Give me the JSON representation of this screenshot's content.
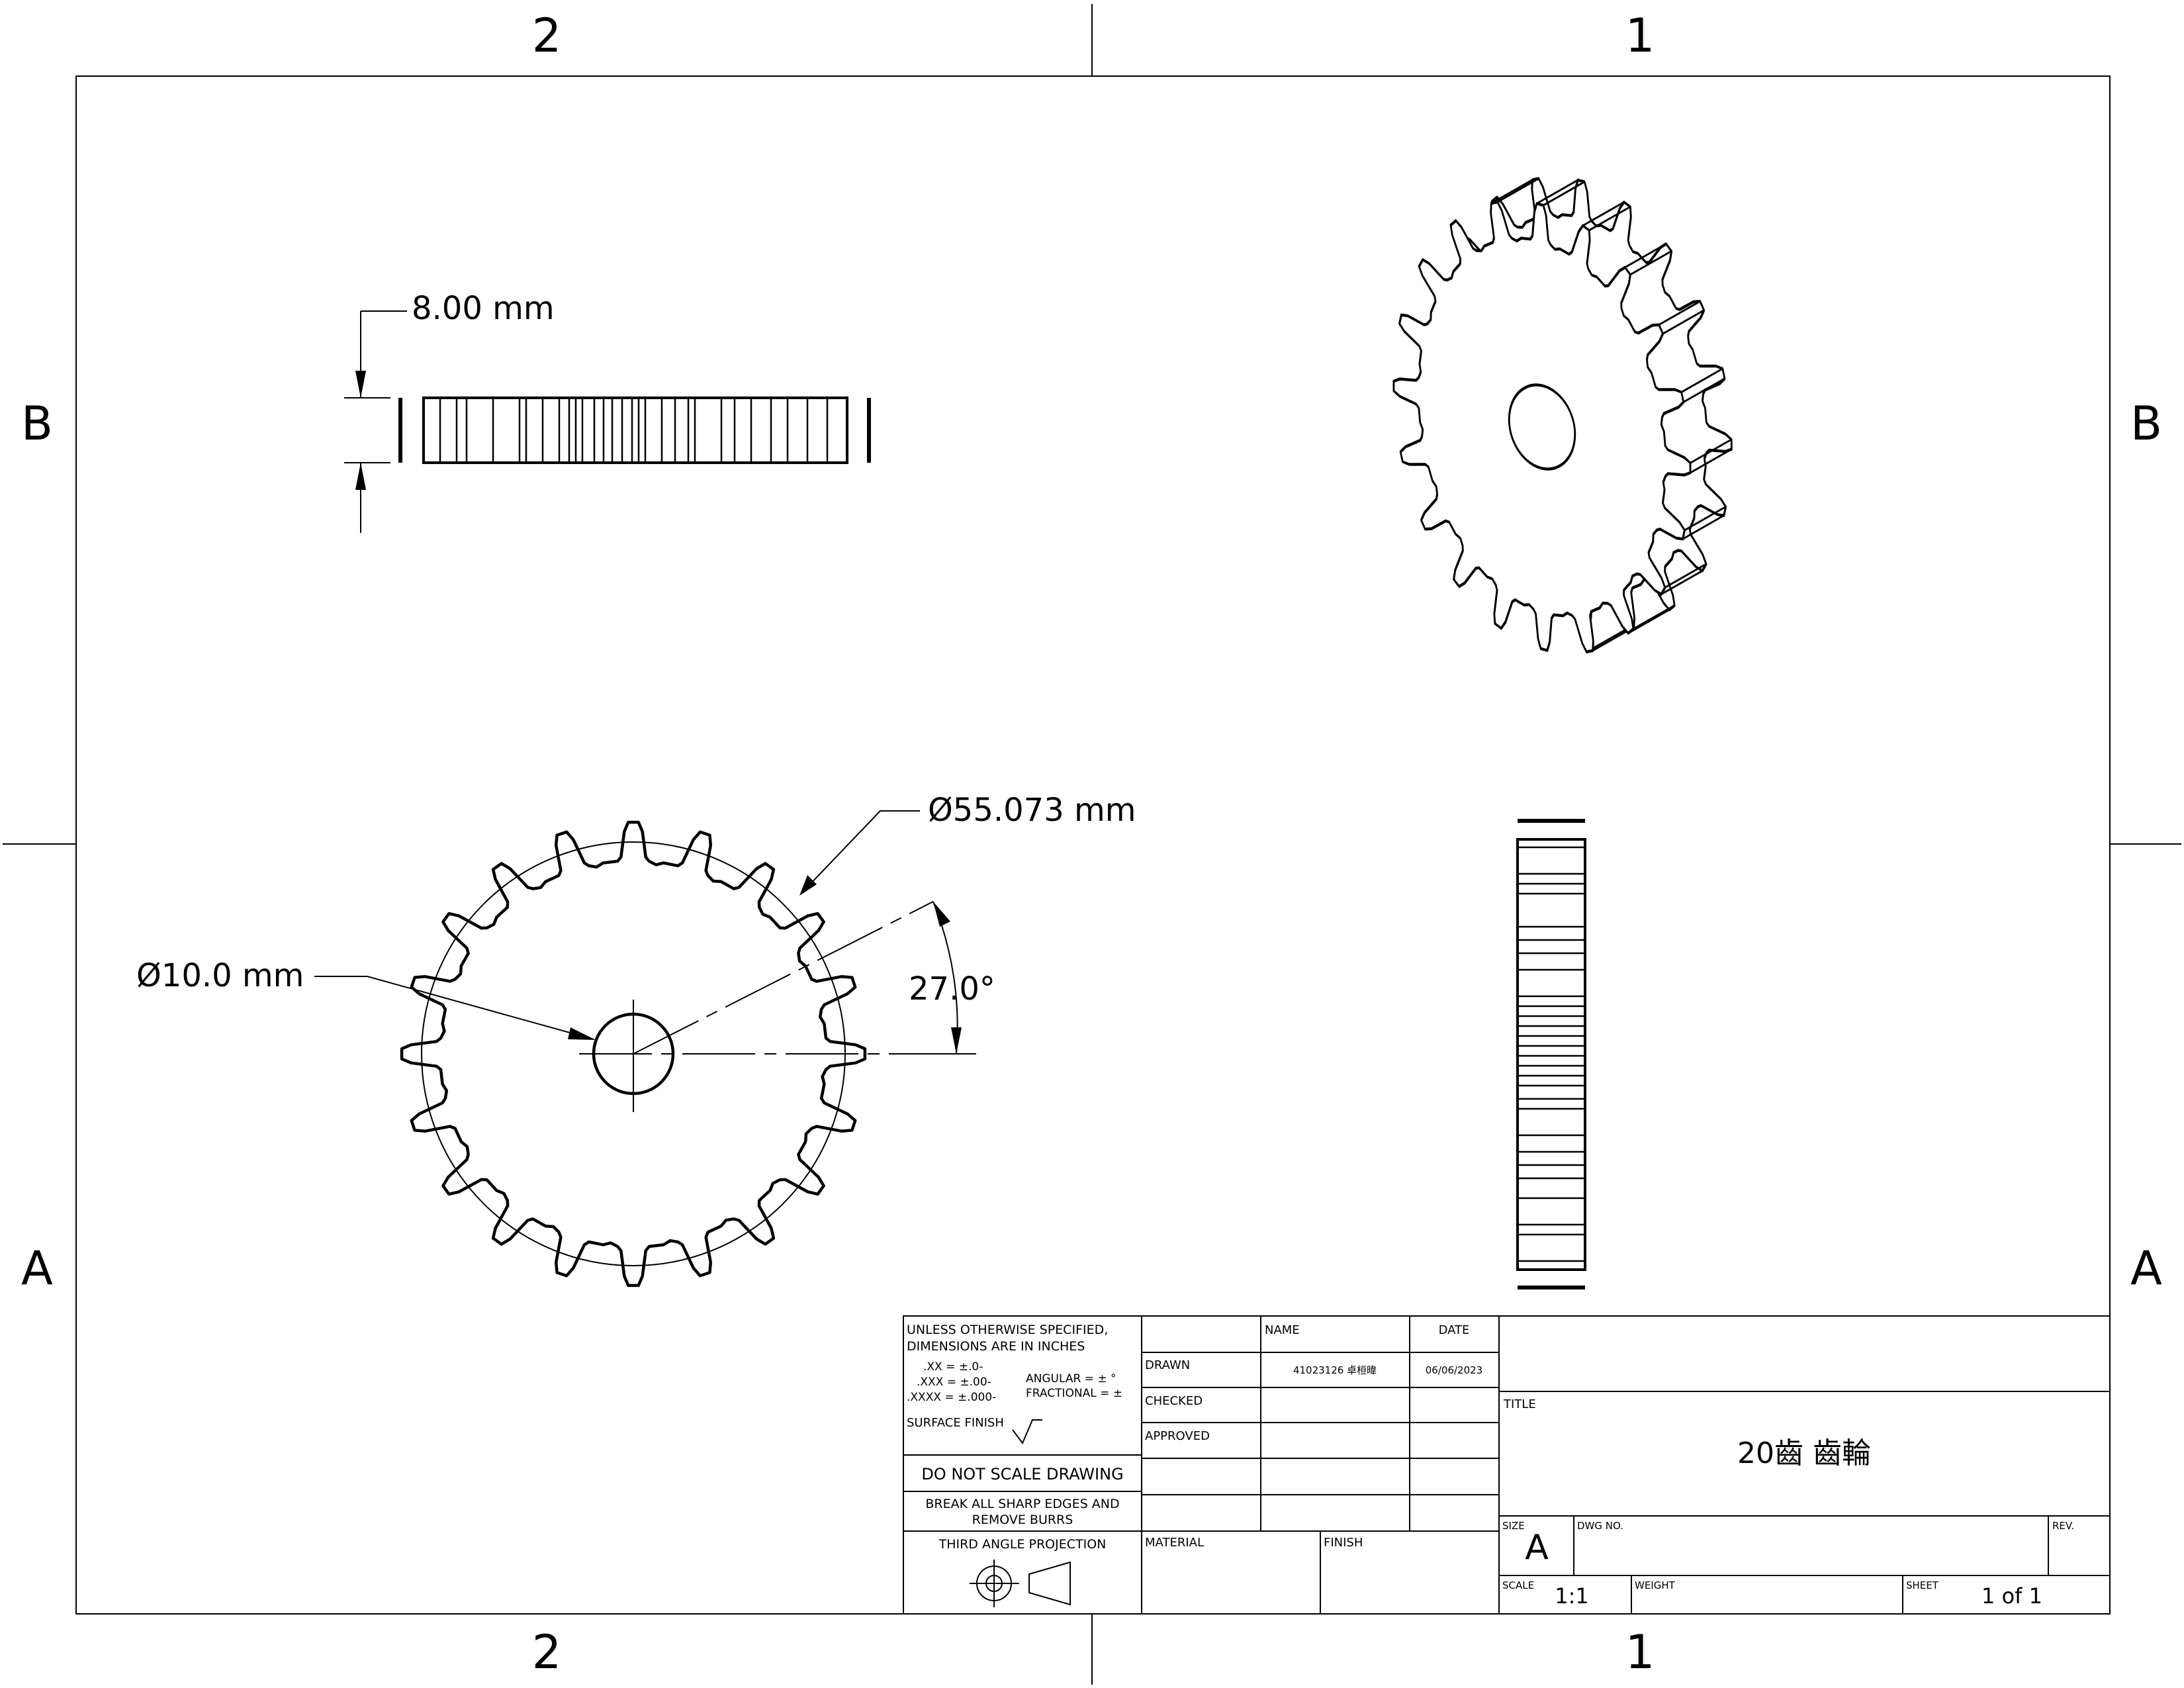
{
  "zones": {
    "columns": [
      "2",
      "1"
    ],
    "rows": [
      "B",
      "A"
    ]
  },
  "dimensions": {
    "thickness": "8.00 mm",
    "pitch_diameter": "Ø55.073 mm",
    "bore_diameter": "Ø10.0 mm",
    "angle": "27.0°"
  },
  "gear": {
    "teeth": 20
  },
  "title_block": {
    "notes_line1": "UNLESS OTHERWISE SPECIFIED,",
    "notes_line2": "DIMENSIONS ARE IN INCHES",
    "tol_xx": ".XX = ±.0-",
    "tol_xxx": ".XXX = ±.00-",
    "tol_xxxx": ".XXXX = ±.000-",
    "tol_angular": "ANGULAR = ± °",
    "tol_fractional": "FRACTIONAL = ±",
    "surface_finish": "SURFACE FINISH",
    "do_not_scale": "DO NOT SCALE DRAWING",
    "break_edges_1": "BREAK ALL SHARP EDGES AND",
    "break_edges_2": "REMOVE BURRS",
    "projection": "THIRD ANGLE PROJECTION",
    "name_header": "NAME",
    "date_header": "DATE",
    "drawn_label": "DRAWN",
    "drawn_name": "41023126 卓桓暐",
    "drawn_date": "06/06/2023",
    "checked_label": "CHECKED",
    "approved_label": "APPROVED",
    "material_label": "MATERIAL",
    "finish_label": "FINISH",
    "title_label": "TITLE",
    "title": "20齒 齒輪",
    "size_label": "SIZE",
    "size": "A",
    "dwg_no_label": "DWG NO.",
    "rev_label": "REV.",
    "scale_label": "SCALE",
    "scale": "1:1",
    "weight_label": "WEIGHT",
    "sheet_label": "SHEET",
    "sheet": "1 of 1"
  }
}
